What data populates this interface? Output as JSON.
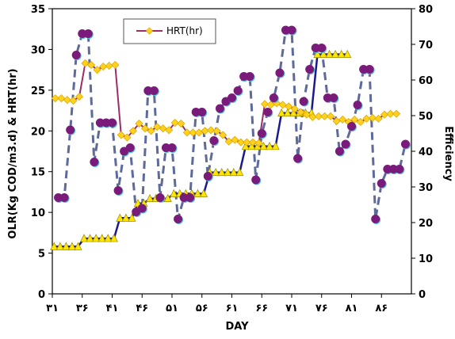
{
  "chart_data": {
    "type": "line",
    "xlabel": "DAY",
    "ylabel_left": "OLR(Kg COD/m3.d) & HRT(hr)",
    "ylabel_right": "Efficiency",
    "xlim": [
      31,
      91
    ],
    "ylim_left": [
      0,
      35
    ],
    "ylim_right": [
      0,
      80
    ],
    "x_ticks": [
      31,
      36,
      41,
      46,
      51,
      56,
      61,
      66,
      71,
      76,
      81,
      86
    ],
    "x_tick_labels": [
      "۳۱",
      "۳۶",
      "۴۱",
      "۴۶",
      "۵۱",
      "۵۶",
      "۶۱",
      "۶۶",
      "۷۱",
      "۷۶",
      "۸۱",
      "۸۶"
    ],
    "y_left_ticks": [
      0,
      5,
      10,
      15,
      20,
      25,
      30,
      35
    ],
    "y_right_ticks": [
      0,
      10,
      20,
      30,
      40,
      50,
      60,
      70,
      80
    ],
    "grid": false,
    "legend_position": "top-center",
    "series": [
      {
        "name": "HRT(hr)",
        "axis": "left",
        "color": "#9b2d6a",
        "marker_color": "#ffd21f",
        "points": [
          [
            31.5,
            24
          ],
          [
            32.5,
            24
          ],
          [
            33.5,
            23.8
          ],
          [
            34.5,
            23.7
          ],
          [
            35.5,
            24.2
          ],
          [
            36.5,
            28.3
          ],
          [
            37.5,
            28.1
          ],
          [
            38.5,
            27.5
          ],
          [
            39.5,
            27.9
          ],
          [
            40.5,
            28.0
          ],
          [
            41.5,
            28.1
          ],
          [
            42.5,
            19.5
          ],
          [
            43.5,
            19.2
          ],
          [
            44.5,
            20.0
          ],
          [
            45.5,
            20.9
          ],
          [
            46.5,
            20.3
          ],
          [
            47.5,
            20.0
          ],
          [
            48.5,
            20.5
          ],
          [
            49.5,
            20.3
          ],
          [
            50.5,
            20.1
          ],
          [
            51.5,
            21.0
          ],
          [
            52.5,
            20.9
          ],
          [
            53.5,
            19.8
          ],
          [
            54.5,
            19.8
          ],
          [
            55.5,
            19.8
          ],
          [
            56.5,
            20.0
          ],
          [
            57.5,
            20.1
          ],
          [
            58.5,
            20.0
          ],
          [
            59.5,
            19.5
          ],
          [
            60.5,
            18.7
          ],
          [
            61.5,
            18.9
          ],
          [
            62.5,
            18.6
          ],
          [
            63.5,
            18.6
          ],
          [
            64.5,
            18.6
          ],
          [
            65.5,
            18.5
          ],
          [
            66.5,
            23.3
          ],
          [
            67.5,
            23.2
          ],
          [
            68.5,
            23.4
          ],
          [
            69.5,
            23.2
          ],
          [
            70.5,
            23.0
          ],
          [
            71.5,
            22.7
          ],
          [
            72.5,
            22.3
          ],
          [
            73.5,
            22.0
          ],
          [
            74.5,
            21.7
          ],
          [
            75.5,
            21.8
          ],
          [
            76.5,
            21.8
          ],
          [
            77.5,
            21.8
          ],
          [
            78.5,
            21.2
          ],
          [
            79.5,
            21.4
          ],
          [
            80.5,
            21.1
          ],
          [
            81.5,
            21.4
          ],
          [
            82.5,
            21.1
          ],
          [
            83.5,
            21.5
          ],
          [
            84.5,
            21.6
          ],
          [
            85.5,
            21.5
          ],
          [
            86.5,
            22.0
          ],
          [
            87.5,
            22.1
          ],
          [
            88.5,
            22.1
          ]
        ]
      },
      {
        "name": "OLR",
        "axis": "left",
        "color": "#1a1a8c",
        "marker_color": "#ffe600",
        "points": [
          [
            31.3,
            5.8
          ],
          [
            32.3,
            5.8
          ],
          [
            33.3,
            5.8
          ],
          [
            34.3,
            5.8
          ],
          [
            35.3,
            5.8
          ],
          [
            36.3,
            6.8
          ],
          [
            37.3,
            6.8
          ],
          [
            38.3,
            6.8
          ],
          [
            39.3,
            6.8
          ],
          [
            40.3,
            6.8
          ],
          [
            41.3,
            6.8
          ],
          [
            42.3,
            9.3
          ],
          [
            43.3,
            9.3
          ],
          [
            44.3,
            9.3
          ],
          [
            45.3,
            11.1
          ],
          [
            46.3,
            11.1
          ],
          [
            47.3,
            11.7
          ],
          [
            48.3,
            11.7
          ],
          [
            49.3,
            11.7
          ],
          [
            50.3,
            11.7
          ],
          [
            51.3,
            12.3
          ],
          [
            52.3,
            12.3
          ],
          [
            53.3,
            12.3
          ],
          [
            54.3,
            12.3
          ],
          [
            55.3,
            12.3
          ],
          [
            56.3,
            12.3
          ],
          [
            57.3,
            14.9
          ],
          [
            58.3,
            14.9
          ],
          [
            59.3,
            14.9
          ],
          [
            60.3,
            14.9
          ],
          [
            61.3,
            14.9
          ],
          [
            62.3,
            14.9
          ],
          [
            63.3,
            18.1
          ],
          [
            64.3,
            18.1
          ],
          [
            65.3,
            18.1
          ],
          [
            66.3,
            18.1
          ],
          [
            67.3,
            18.1
          ],
          [
            68.3,
            18.1
          ],
          [
            69.3,
            22.2
          ],
          [
            70.3,
            22.2
          ],
          [
            71.3,
            22.2
          ],
          [
            72.3,
            22.2
          ],
          [
            73.3,
            22.2
          ],
          [
            74.3,
            22.2
          ],
          [
            75.3,
            29.4
          ],
          [
            76.3,
            29.4
          ],
          [
            77.3,
            29.4
          ],
          [
            78.3,
            29.4
          ],
          [
            79.3,
            29.4
          ],
          [
            80.3,
            29.4
          ]
        ]
      },
      {
        "name": "Efficiency",
        "axis": "right",
        "color": "#5d6a9a",
        "marker_color": "#7a1a7a",
        "points": [
          [
            32,
            27
          ],
          [
            33,
            27
          ],
          [
            34,
            46
          ],
          [
            35,
            67
          ],
          [
            36,
            73
          ],
          [
            37,
            73
          ],
          [
            38,
            37
          ],
          [
            39,
            48
          ],
          [
            40,
            48
          ],
          [
            41,
            48
          ],
          [
            42,
            29
          ],
          [
            43,
            40
          ],
          [
            44,
            41
          ],
          [
            45,
            23
          ],
          [
            46,
            24
          ],
          [
            47,
            57
          ],
          [
            48,
            57
          ],
          [
            49,
            27
          ],
          [
            50,
            41
          ],
          [
            51,
            41
          ],
          [
            52,
            21
          ],
          [
            53,
            27
          ],
          [
            54,
            27
          ],
          [
            55,
            51
          ],
          [
            56,
            51
          ],
          [
            57,
            33
          ],
          [
            58,
            43
          ],
          [
            59,
            52
          ],
          [
            60,
            54
          ],
          [
            61,
            55
          ],
          [
            62,
            57
          ],
          [
            63,
            61
          ],
          [
            64,
            61
          ],
          [
            65,
            32
          ],
          [
            66,
            45
          ],
          [
            67,
            51
          ],
          [
            68,
            55
          ],
          [
            69,
            62
          ],
          [
            70,
            74
          ],
          [
            71,
            74
          ],
          [
            72,
            38
          ],
          [
            73,
            54
          ],
          [
            74,
            63
          ],
          [
            75,
            69
          ],
          [
            76,
            69
          ],
          [
            77,
            55
          ],
          [
            78,
            55
          ],
          [
            79,
            40
          ],
          [
            80,
            42
          ],
          [
            81,
            47
          ],
          [
            82,
            53
          ],
          [
            83,
            63
          ],
          [
            84,
            63
          ],
          [
            85,
            21
          ],
          [
            86,
            31
          ],
          [
            87,
            35
          ],
          [
            88,
            35
          ],
          [
            89,
            35
          ],
          [
            90,
            42
          ]
        ]
      }
    ]
  }
}
